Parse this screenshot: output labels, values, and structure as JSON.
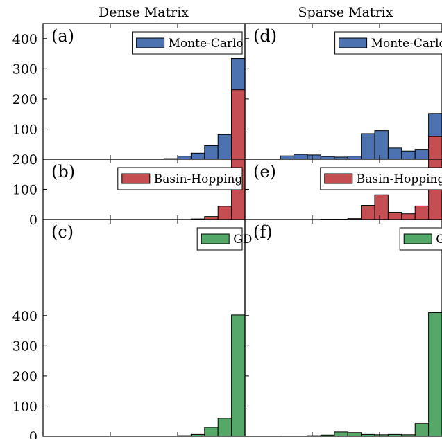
{
  "column_titles": [
    "Dense Matrix",
    "Sparse Matrix"
  ],
  "chart_data": [
    {
      "type": "bar",
      "panel": "(a)",
      "column_title": "Dense Matrix",
      "series": [
        {
          "name": "Monte-Carlo",
          "color": "#4c72b0",
          "values": [
            0,
            0,
            0,
            0,
            0,
            0,
            0,
            0,
            0,
            2,
            10,
            20,
            45,
            82,
            334
          ]
        }
      ],
      "ylim": [
        0,
        450
      ],
      "yticks": [
        "0",
        "100",
        "200",
        "300",
        "400"
      ],
      "legend_position": "top-right"
    },
    {
      "type": "bar",
      "panel": "(b)",
      "column_title": "Dense Matrix",
      "series": [
        {
          "name": "Basin-Hopping",
          "color": "#c44e52",
          "values": [
            0,
            0,
            0,
            0,
            0,
            0,
            0,
            0,
            0,
            0,
            0,
            2,
            10,
            44,
            430
          ]
        }
      ],
      "ylim": [
        0,
        450
      ],
      "yticks": [
        "0",
        "100",
        "200",
        "300",
        "400"
      ],
      "legend_position": "top-right"
    },
    {
      "type": "bar",
      "panel": "(c)",
      "column_title": "Dense Matrix",
      "series": [
        {
          "name": "GD",
          "color": "#55a868",
          "values": [
            0,
            0,
            0,
            0,
            0,
            0,
            0,
            0,
            0,
            0,
            2,
            6,
            30,
            60,
            402
          ]
        }
      ],
      "ylim": [
        0,
        450
      ],
      "yticks": [
        "0",
        "100",
        "200",
        "300",
        "400"
      ],
      "legend_position": "top-right"
    },
    {
      "type": "bar",
      "panel": "(d)",
      "column_title": "Sparse Matrix",
      "series": [
        {
          "name": "Monte-Carlo",
          "color": "#4c72b0",
          "values": [
            0,
            0,
            11,
            16,
            14,
            9,
            7,
            10,
            85,
            95,
            37,
            27,
            33,
            152
          ]
        }
      ],
      "ylim": [
        0,
        450
      ],
      "legend_position": "top-right"
    },
    {
      "type": "bar",
      "panel": "(e)",
      "column_title": "Sparse Matrix",
      "series": [
        {
          "name": "Basin-Hopping",
          "color": "#c44e52",
          "values": [
            0,
            0,
            0,
            0,
            0,
            1,
            1,
            3,
            47,
            82,
            24,
            19,
            45,
            275
          ]
        }
      ],
      "ylim": [
        0,
        450
      ],
      "legend_position": "top-right"
    },
    {
      "type": "bar",
      "panel": "(f)",
      "column_title": "Sparse Matrix",
      "series": [
        {
          "name": "GD",
          "color": "#55a868",
          "values": [
            0,
            0,
            1,
            1,
            2,
            4,
            14,
            12,
            6,
            5,
            6,
            5,
            42,
            410
          ]
        }
      ],
      "ylim": [
        0,
        450
      ],
      "legend_position": "top-right"
    }
  ]
}
